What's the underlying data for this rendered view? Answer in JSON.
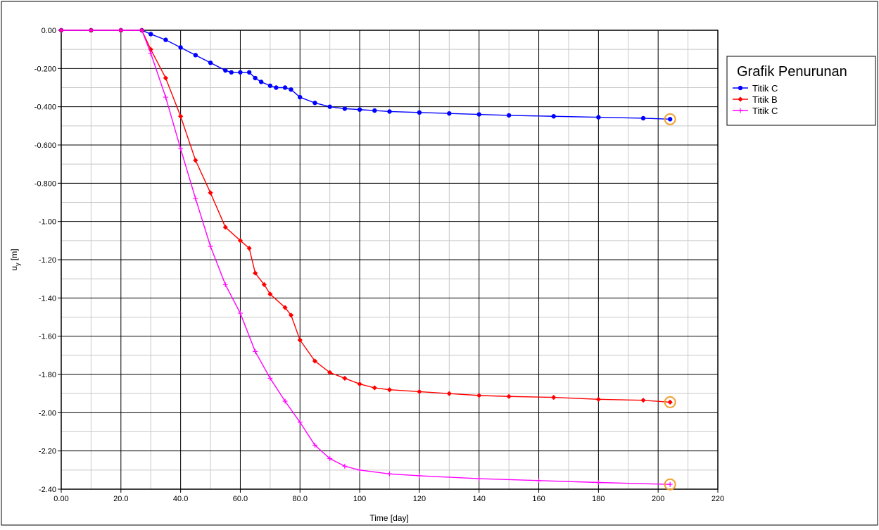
{
  "chart_data": {
    "type": "line",
    "title": "",
    "xlabel": "Time [day]",
    "ylabel": "u_y [m]",
    "xlim": [
      0,
      220
    ],
    "ylim": [
      -2.4,
      0
    ],
    "x_ticks": [
      "0.00",
      "20.0",
      "40.0",
      "60.0",
      "80.0",
      "100",
      "120",
      "140",
      "160",
      "180",
      "200",
      "220"
    ],
    "y_ticks": [
      "0.00",
      "-0.200",
      "-0.400",
      "-0.600",
      "-0.800",
      "-1.00",
      "-1.20",
      "-1.40",
      "-1.60",
      "-1.80",
      "-2.00",
      "-2.20",
      "-2.40"
    ],
    "grid": true,
    "legend": {
      "title": "Grafik Penurunan",
      "position": "right",
      "entries": [
        "Titik C",
        "Titik B",
        "Titik C"
      ]
    },
    "series": [
      {
        "name": "Titik C",
        "color": "#0000ff",
        "marker": "circle",
        "x": [
          0,
          10,
          20,
          27,
          30,
          35,
          40,
          45,
          50,
          55,
          57,
          60,
          63,
          65,
          67,
          70,
          72,
          75,
          77,
          80,
          85,
          90,
          95,
          100,
          105,
          110,
          120,
          130,
          140,
          150,
          165,
          180,
          195,
          204
        ],
        "y": [
          0,
          0,
          0,
          0,
          -0.02,
          -0.05,
          -0.09,
          -0.13,
          -0.17,
          -0.21,
          -0.22,
          -0.22,
          -0.22,
          -0.25,
          -0.27,
          -0.29,
          -0.3,
          -0.3,
          -0.31,
          -0.35,
          -0.38,
          -0.4,
          -0.41,
          -0.415,
          -0.42,
          -0.425,
          -0.43,
          -0.435,
          -0.44,
          -0.445,
          -0.45,
          -0.455,
          -0.46,
          -0.465
        ]
      },
      {
        "name": "Titik B",
        "color": "#ff0000",
        "marker": "diamond",
        "x": [
          0,
          10,
          20,
          27,
          30,
          35,
          40,
          45,
          50,
          55,
          60,
          63,
          65,
          68,
          70,
          75,
          77,
          80,
          85,
          90,
          95,
          100,
          105,
          110,
          120,
          130,
          140,
          150,
          165,
          180,
          195,
          204
        ],
        "y": [
          0,
          0,
          0,
          0,
          -0.1,
          -0.25,
          -0.45,
          -0.68,
          -0.85,
          -1.03,
          -1.1,
          -1.14,
          -1.27,
          -1.33,
          -1.38,
          -1.45,
          -1.49,
          -1.62,
          -1.73,
          -1.79,
          -1.82,
          -1.85,
          -1.87,
          -1.88,
          -1.89,
          -1.9,
          -1.91,
          -1.915,
          -1.92,
          -1.93,
          -1.935,
          -1.945
        ]
      },
      {
        "name": "Titik C",
        "color": "#ff00ff",
        "marker": "plus",
        "x": [
          0,
          10,
          20,
          27,
          30,
          35,
          40,
          45,
          50,
          55,
          60,
          65,
          70,
          75,
          80,
          85,
          90,
          95,
          100,
          110,
          120,
          140,
          160,
          180,
          204
        ],
        "y": [
          0,
          0,
          0,
          0,
          -0.12,
          -0.35,
          -0.62,
          -0.88,
          -1.13,
          -1.33,
          -1.48,
          -1.68,
          -1.82,
          -1.94,
          -2.05,
          -2.17,
          -2.24,
          -2.28,
          -2.3,
          -2.32,
          -2.33,
          -2.345,
          -2.355,
          -2.365,
          -2.375
        ]
      }
    ]
  }
}
